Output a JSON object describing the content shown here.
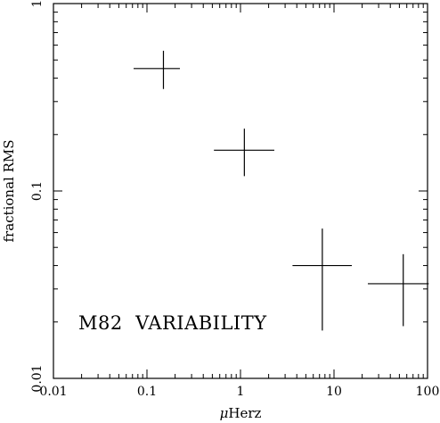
{
  "chart_data": {
    "type": "scatter",
    "xscale": "log",
    "yscale": "log",
    "xlim": [
      0.01,
      100
    ],
    "ylim": [
      0.01,
      1
    ],
    "xlabel_prefix": "μ",
    "xlabel_main": "Herz",
    "ylabel": "fractional RMS",
    "annotation": "M82  VARIABILITY",
    "x_ticks": [
      {
        "value": 0.01,
        "label": "0.01"
      },
      {
        "value": 0.1,
        "label": "0.1"
      },
      {
        "value": 1,
        "label": "1"
      },
      {
        "value": 10,
        "label": "10"
      },
      {
        "value": 100,
        "label": "100"
      }
    ],
    "y_ticks": [
      {
        "value": 0.01,
        "label": "0.01"
      },
      {
        "value": 0.1,
        "label": "0.1"
      },
      {
        "value": 1,
        "label": "1"
      }
    ],
    "points": [
      {
        "x": 0.15,
        "y": 0.45,
        "xerr": [
          0.072,
          0.225
        ],
        "yerr": [
          0.35,
          0.56
        ]
      },
      {
        "x": 1.1,
        "y": 0.165,
        "xerr": [
          0.52,
          2.3
        ],
        "yerr": [
          0.12,
          0.215
        ]
      },
      {
        "x": 7.5,
        "y": 0.04,
        "xerr": [
          3.6,
          15.5
        ],
        "yerr": [
          0.018,
          0.063
        ]
      },
      {
        "x": 55,
        "y": 0.032,
        "xerr": [
          23,
          103
        ],
        "yerr": [
          0.019,
          0.046
        ]
      }
    ]
  }
}
